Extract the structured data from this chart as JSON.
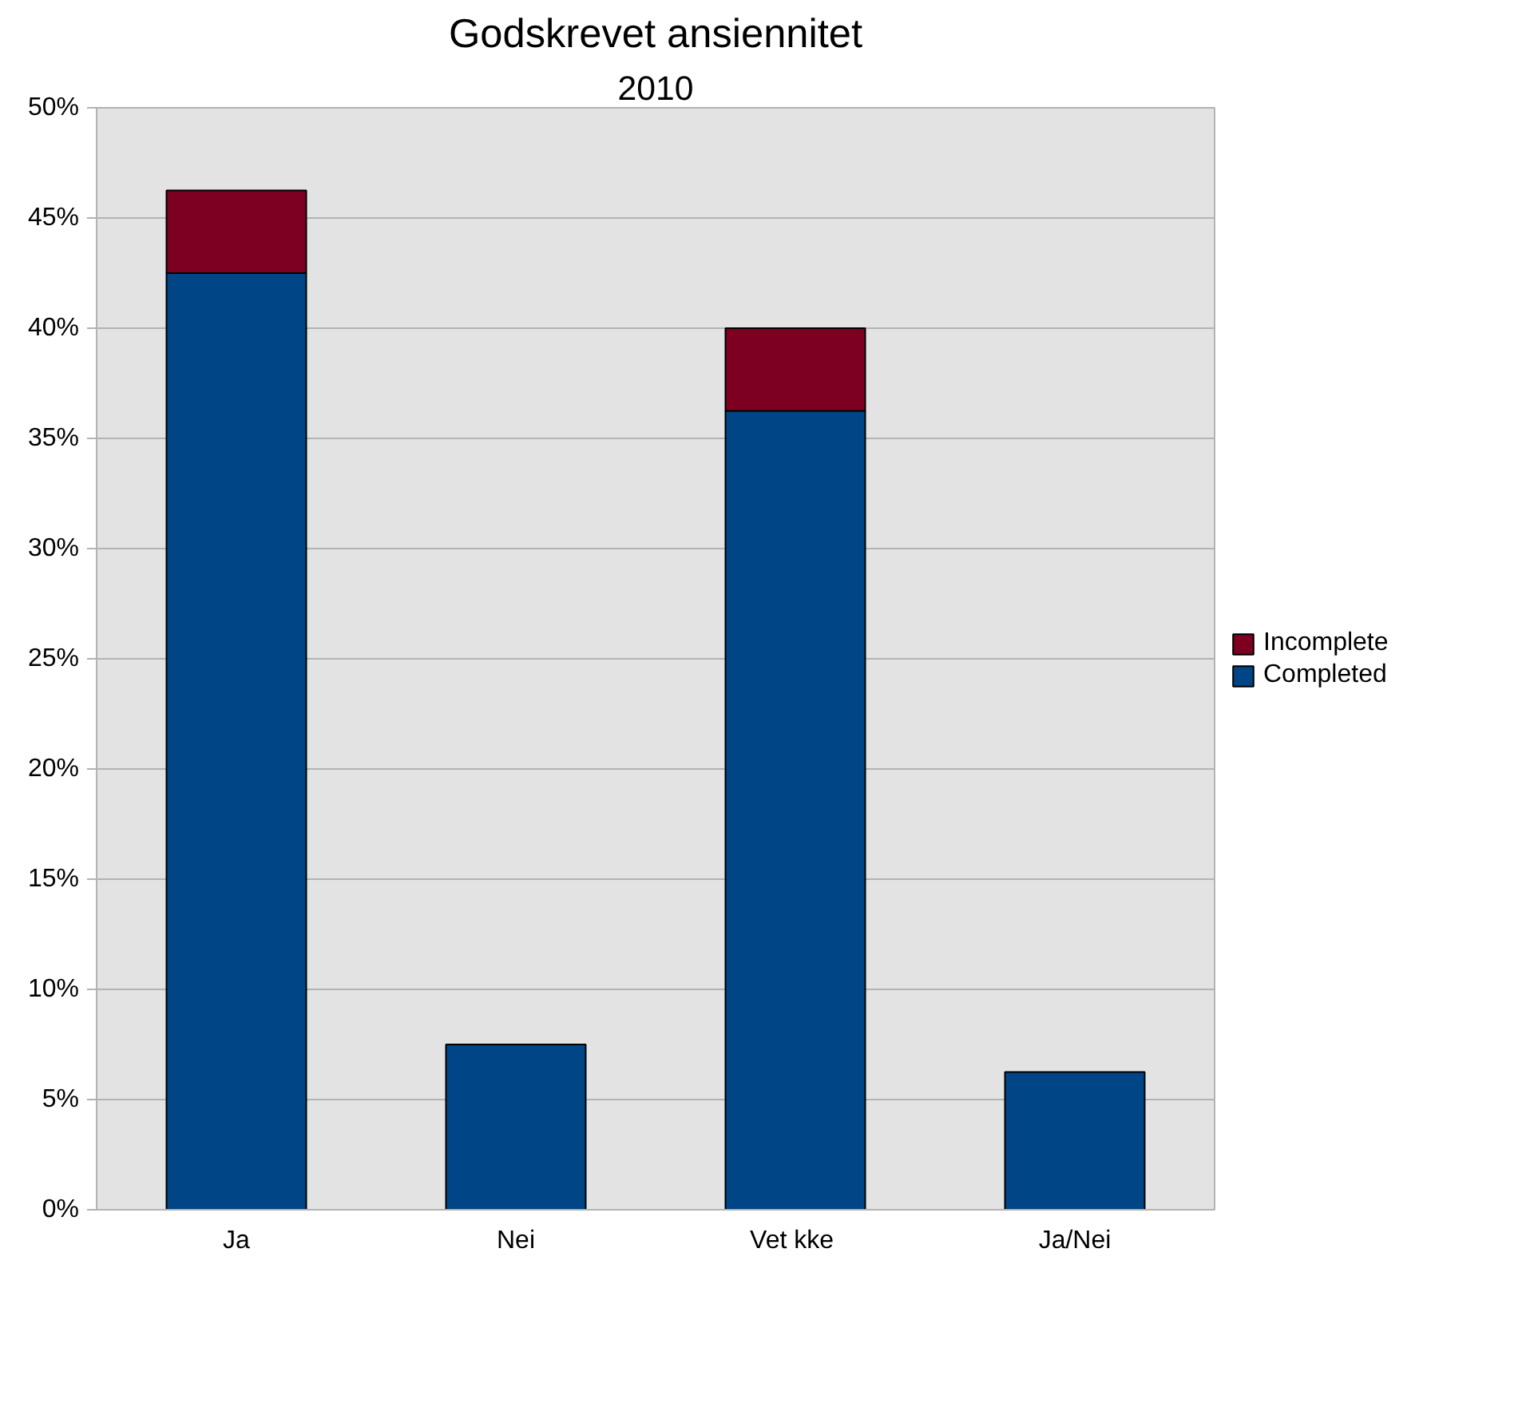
{
  "chart_data": {
    "type": "bar",
    "title": "Godskrevet ansiennitet",
    "subtitle": "2010",
    "categories": [
      "Ja",
      "Nei",
      "Vet  kke",
      "Ja/Nei"
    ],
    "stacked": true,
    "series": [
      {
        "name": "Completed",
        "color": "#004586",
        "values": [
          42.5,
          7.5,
          36.25,
          6.25
        ]
      },
      {
        "name": "Incomplete",
        "color": "#7e0021",
        "values": [
          3.75,
          null,
          3.75,
          null
        ]
      }
    ],
    "ylim": [
      0,
      50
    ],
    "yticks": [
      {
        "value": 0,
        "label": "0%"
      },
      {
        "value": 5,
        "label": "5%"
      },
      {
        "value": 10,
        "label": "10%"
      },
      {
        "value": 15,
        "label": "15%"
      },
      {
        "value": 20,
        "label": "20%"
      },
      {
        "value": 25,
        "label": "25%"
      },
      {
        "value": 30,
        "label": "30%"
      },
      {
        "value": 35,
        "label": "35%"
      },
      {
        "value": 40,
        "label": "40%"
      },
      {
        "value": 45,
        "label": "45%"
      },
      {
        "value": 50,
        "label": "50%"
      }
    ],
    "grid": "y",
    "legend": "right"
  }
}
